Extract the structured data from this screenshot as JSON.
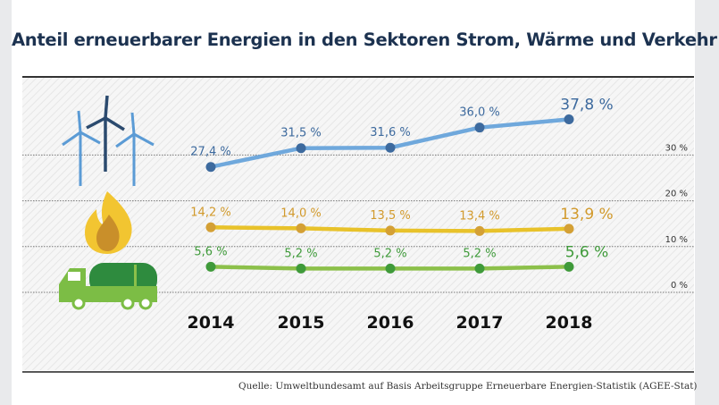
{
  "title": "Anteil erneuerbarer Energien in den Sektoren Strom, Wärme und Verkehr",
  "source": "Quelle: Umweltbundesamt auf Basis Arbeitsgruppe Erneuerbare Energien-Statistik (AGEE-Stat)",
  "icons": [
    "wind-turbines-icon",
    "flame-icon",
    "tanker-truck-icon"
  ],
  "chart_data": {
    "type": "line",
    "title": "Anteil erneuerbarer Energien in den Sektoren Strom, Wärme und Verkehr",
    "x": [
      "2014",
      "2015",
      "2016",
      "2017",
      "2018"
    ],
    "ylim": [
      0,
      40
    ],
    "yticks": [
      0,
      10,
      20,
      30
    ],
    "ytick_labels": [
      "0 %",
      "10 %",
      "20 %",
      "30 %"
    ],
    "grid": true,
    "series": [
      {
        "values": [
          27.4,
          31.5,
          31.6,
          36.0,
          37.8
        ],
        "labels": [
          "27,4 %",
          "31,5 %",
          "31,6 %",
          "36,0 %",
          "37,8 %"
        ],
        "color": "#6fa8dc",
        "marker_color": "#3d6a9e",
        "label_color": "#3d6a9e"
      },
      {
        "values": [
          14.2,
          14.0,
          13.5,
          13.4,
          13.9
        ],
        "labels": [
          "14,2 %",
          "14,0 %",
          "13,5 %",
          "13,4 %",
          "13,9 %"
        ],
        "color": "#e8c22a",
        "marker_color": "#d4a035",
        "label_color": "#d29a2c"
      },
      {
        "values": [
          5.6,
          5.2,
          5.2,
          5.2,
          5.6
        ],
        "labels": [
          "5,6 %",
          "5,2 %",
          "5,2 %",
          "5,2 %",
          "5,6 %"
        ],
        "color": "#8cc04a",
        "marker_color": "#3f9a3a",
        "label_color": "#3f9a3a"
      }
    ]
  }
}
